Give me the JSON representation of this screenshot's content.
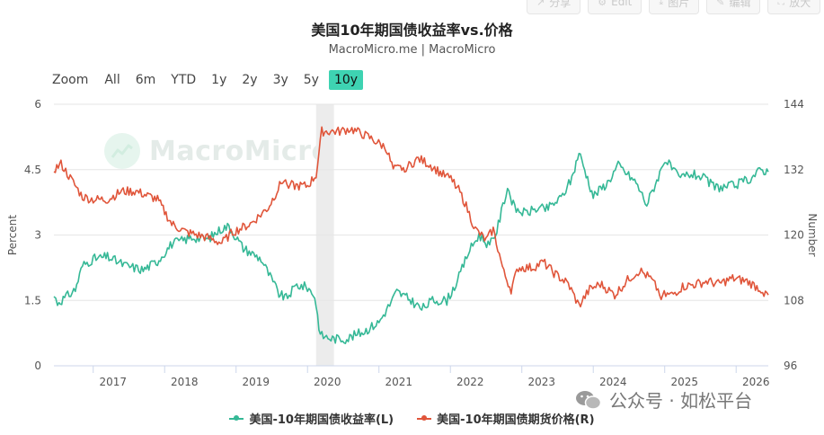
{
  "toolbar": {
    "items": [
      {
        "icon": "share-icon",
        "label": "分享"
      },
      {
        "icon": "settings-icon",
        "label": "Edit"
      },
      {
        "icon": "download-icon",
        "label": "图片"
      },
      {
        "icon": "edit-icon",
        "label": "编辑"
      },
      {
        "icon": "expand-icon",
        "label": "放大"
      }
    ]
  },
  "header": {
    "title": "美国10年期国债收益率vs.价格",
    "subtitle": "MacroMicro.me | MacroMicro"
  },
  "range_selector": {
    "zoom_label": "Zoom",
    "buttons": [
      "All",
      "6m",
      "YTD",
      "1y",
      "2y",
      "3y",
      "5y",
      "10y"
    ],
    "active": "10y"
  },
  "watermark": {
    "text": "MacroMicro"
  },
  "footer_watermark": {
    "text": "公众号 · 如松平台"
  },
  "colors": {
    "yield": "#35b896",
    "price": "#e0553a",
    "highlight": "#ececec"
  },
  "chart_data": {
    "type": "line",
    "title": "美国10年期国债收益率vs.价格",
    "x_ticks": [
      "2017",
      "2018",
      "2019",
      "2020",
      "2021",
      "2022",
      "2023",
      "2024",
      "2025",
      "2026"
    ],
    "x_range": [
      2016.45,
      2026.45
    ],
    "y_left": {
      "label": "Percent",
      "ticks": [
        "0",
        "1.5",
        "3",
        "4.5",
        "6"
      ],
      "range": [
        0,
        6
      ]
    },
    "y_right": {
      "label": "Number",
      "ticks": [
        "96",
        "108",
        "120",
        "132",
        "144"
      ],
      "range": [
        96,
        144
      ]
    },
    "shaded_period": [
      2020.12,
      2020.37
    ],
    "grid": true,
    "legend_position": "bottom",
    "series": [
      {
        "name": "美国-10年期国债收益率(L)",
        "axis": "left",
        "points": [
          [
            2016.45,
            1.6
          ],
          [
            2016.5,
            1.45
          ],
          [
            2016.6,
            1.55
          ],
          [
            2016.75,
            1.75
          ],
          [
            2016.85,
            2.3
          ],
          [
            2017.0,
            2.45
          ],
          [
            2017.2,
            2.5
          ],
          [
            2017.45,
            2.3
          ],
          [
            2017.7,
            2.2
          ],
          [
            2017.9,
            2.4
          ],
          [
            2018.1,
            2.8
          ],
          [
            2018.4,
            2.95
          ],
          [
            2018.6,
            2.9
          ],
          [
            2018.8,
            3.15
          ],
          [
            2018.9,
            3.2
          ],
          [
            2019.1,
            2.7
          ],
          [
            2019.35,
            2.45
          ],
          [
            2019.6,
            1.65
          ],
          [
            2019.7,
            1.55
          ],
          [
            2019.85,
            1.85
          ],
          [
            2020.0,
            1.8
          ],
          [
            2020.1,
            1.6
          ],
          [
            2020.18,
            0.7
          ],
          [
            2020.35,
            0.62
          ],
          [
            2020.55,
            0.62
          ],
          [
            2020.8,
            0.8
          ],
          [
            2021.0,
            1.0
          ],
          [
            2021.15,
            1.4
          ],
          [
            2021.25,
            1.7
          ],
          [
            2021.45,
            1.5
          ],
          [
            2021.6,
            1.3
          ],
          [
            2021.75,
            1.5
          ],
          [
            2021.95,
            1.5
          ],
          [
            2022.1,
            1.95
          ],
          [
            2022.25,
            2.6
          ],
          [
            2022.4,
            3.0
          ],
          [
            2022.55,
            2.75
          ],
          [
            2022.65,
            3.1
          ],
          [
            2022.8,
            4.1
          ],
          [
            2022.9,
            3.6
          ],
          [
            2023.05,
            3.5
          ],
          [
            2023.2,
            3.6
          ],
          [
            2023.35,
            3.6
          ],
          [
            2023.55,
            3.85
          ],
          [
            2023.7,
            4.3
          ],
          [
            2023.8,
            4.9
          ],
          [
            2023.9,
            4.4
          ],
          [
            2024.0,
            3.9
          ],
          [
            2024.2,
            4.2
          ],
          [
            2024.35,
            4.6
          ],
          [
            2024.6,
            4.2
          ],
          [
            2024.75,
            3.7
          ],
          [
            2024.95,
            4.5
          ],
          [
            2025.0,
            4.75
          ],
          [
            2025.2,
            4.3
          ],
          [
            2025.35,
            4.4
          ],
          [
            2025.5,
            4.35
          ],
          [
            2025.7,
            4.1
          ],
          [
            2025.85,
            4.1
          ],
          [
            2026.0,
            4.15
          ],
          [
            2026.2,
            4.3
          ],
          [
            2026.35,
            4.5
          ],
          [
            2026.45,
            4.45
          ]
        ]
      },
      {
        "name": "美国-10年期国债期货价格(R)",
        "axis": "right",
        "points": [
          [
            2016.45,
            132
          ],
          [
            2016.55,
            133
          ],
          [
            2016.7,
            130
          ],
          [
            2016.85,
            127
          ],
          [
            2017.0,
            126.5
          ],
          [
            2017.2,
            126.5
          ],
          [
            2017.4,
            128
          ],
          [
            2017.6,
            128
          ],
          [
            2017.9,
            126.5
          ],
          [
            2018.1,
            122
          ],
          [
            2018.3,
            120.5
          ],
          [
            2018.6,
            119.5
          ],
          [
            2018.8,
            118.5
          ],
          [
            2018.95,
            120.5
          ],
          [
            2019.2,
            122
          ],
          [
            2019.45,
            125
          ],
          [
            2019.65,
            130
          ],
          [
            2019.8,
            129
          ],
          [
            2020.0,
            129
          ],
          [
            2020.12,
            131
          ],
          [
            2020.2,
            139
          ],
          [
            2020.45,
            139
          ],
          [
            2020.6,
            139.5
          ],
          [
            2020.85,
            138
          ],
          [
            2021.1,
            136
          ],
          [
            2021.2,
            132
          ],
          [
            2021.4,
            132.5
          ],
          [
            2021.55,
            134
          ],
          [
            2021.7,
            133
          ],
          [
            2021.9,
            131
          ],
          [
            2022.05,
            130
          ],
          [
            2022.2,
            126
          ],
          [
            2022.35,
            121
          ],
          [
            2022.5,
            119
          ],
          [
            2022.6,
            121
          ],
          [
            2022.75,
            113
          ],
          [
            2022.85,
            110
          ],
          [
            2022.95,
            114
          ],
          [
            2023.15,
            114
          ],
          [
            2023.3,
            115
          ],
          [
            2023.45,
            113
          ],
          [
            2023.65,
            111
          ],
          [
            2023.8,
            107
          ],
          [
            2023.95,
            110
          ],
          [
            2024.1,
            111
          ],
          [
            2024.3,
            109
          ],
          [
            2024.5,
            112
          ],
          [
            2024.65,
            113.5
          ],
          [
            2024.8,
            112
          ],
          [
            2024.95,
            109
          ],
          [
            2025.1,
            109
          ],
          [
            2025.25,
            110.5
          ],
          [
            2025.45,
            111
          ],
          [
            2025.6,
            111.5
          ],
          [
            2025.75,
            111
          ],
          [
            2025.95,
            112
          ],
          [
            2026.15,
            111.5
          ],
          [
            2026.35,
            110
          ],
          [
            2026.45,
            109
          ]
        ]
      }
    ]
  }
}
